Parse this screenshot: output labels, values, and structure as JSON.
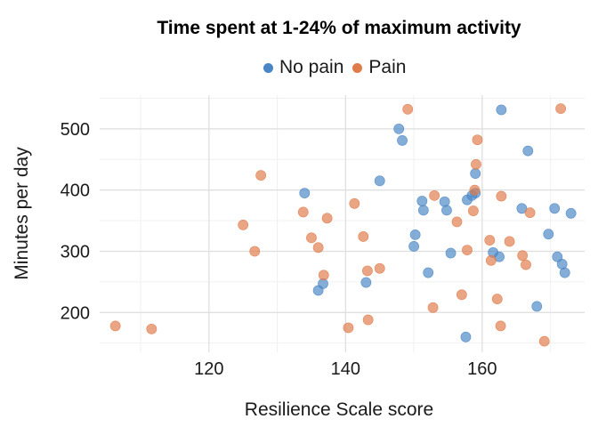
{
  "chart_data": {
    "type": "scatter",
    "title": "Time spent at 1-24% of maximum activity",
    "xlabel": "Resilience Scale score",
    "ylabel": "Minutes per day",
    "xlim": [
      104,
      175
    ],
    "ylim": [
      135,
      555
    ],
    "xticks": [
      120,
      140,
      160
    ],
    "yticks": [
      200,
      300,
      400,
      500
    ],
    "grid": true,
    "legend_position": "top",
    "series": [
      {
        "name": "No pain",
        "color": "#4a86c5",
        "points": [
          [
            134,
            395
          ],
          [
            136,
            236
          ],
          [
            136.7,
            247
          ],
          [
            143,
            249
          ],
          [
            145,
            415
          ],
          [
            147.8,
            500
          ],
          [
            148.3,
            481
          ],
          [
            150,
            308
          ],
          [
            150.2,
            327
          ],
          [
            151.2,
            382
          ],
          [
            151.4,
            367
          ],
          [
            152.1,
            265
          ],
          [
            154.5,
            381
          ],
          [
            154.8,
            367
          ],
          [
            155.4,
            297
          ],
          [
            157.6,
            160
          ],
          [
            157.8,
            384
          ],
          [
            158.5,
            391
          ],
          [
            159,
            427
          ],
          [
            159,
            395
          ],
          [
            161.6,
            298
          ],
          [
            162.5,
            291
          ],
          [
            162.8,
            531
          ],
          [
            165.8,
            370
          ],
          [
            166.7,
            464
          ],
          [
            168,
            210
          ],
          [
            169.7,
            328
          ],
          [
            170.6,
            370
          ],
          [
            171,
            291
          ],
          [
            171.7,
            279
          ],
          [
            172.1,
            265
          ],
          [
            173,
            362
          ]
        ]
      },
      {
        "name": "Pain",
        "color": "#e07b4a",
        "points": [
          [
            106.3,
            178
          ],
          [
            111.6,
            173
          ],
          [
            125,
            343
          ],
          [
            126.7,
            300
          ],
          [
            127.6,
            424
          ],
          [
            133.8,
            364
          ],
          [
            135,
            322
          ],
          [
            136,
            306
          ],
          [
            136.8,
            261
          ],
          [
            137.3,
            354
          ],
          [
            140.4,
            175
          ],
          [
            141.3,
            378
          ],
          [
            142.6,
            324
          ],
          [
            143.2,
            268
          ],
          [
            143.3,
            188
          ],
          [
            145,
            272
          ],
          [
            149.1,
            532
          ],
          [
            152.8,
            208
          ],
          [
            153,
            391
          ],
          [
            156.3,
            348
          ],
          [
            157,
            229
          ],
          [
            157.8,
            302
          ],
          [
            158.7,
            366
          ],
          [
            158.9,
            400
          ],
          [
            159.1,
            442
          ],
          [
            159.3,
            482
          ],
          [
            161.1,
            318
          ],
          [
            161.3,
            285
          ],
          [
            162.2,
            222
          ],
          [
            162.7,
            178
          ],
          [
            162.8,
            390
          ],
          [
            164,
            316
          ],
          [
            165.9,
            293
          ],
          [
            166.4,
            278
          ],
          [
            167,
            363
          ],
          [
            169.1,
            153
          ],
          [
            171.5,
            533
          ]
        ]
      }
    ]
  }
}
